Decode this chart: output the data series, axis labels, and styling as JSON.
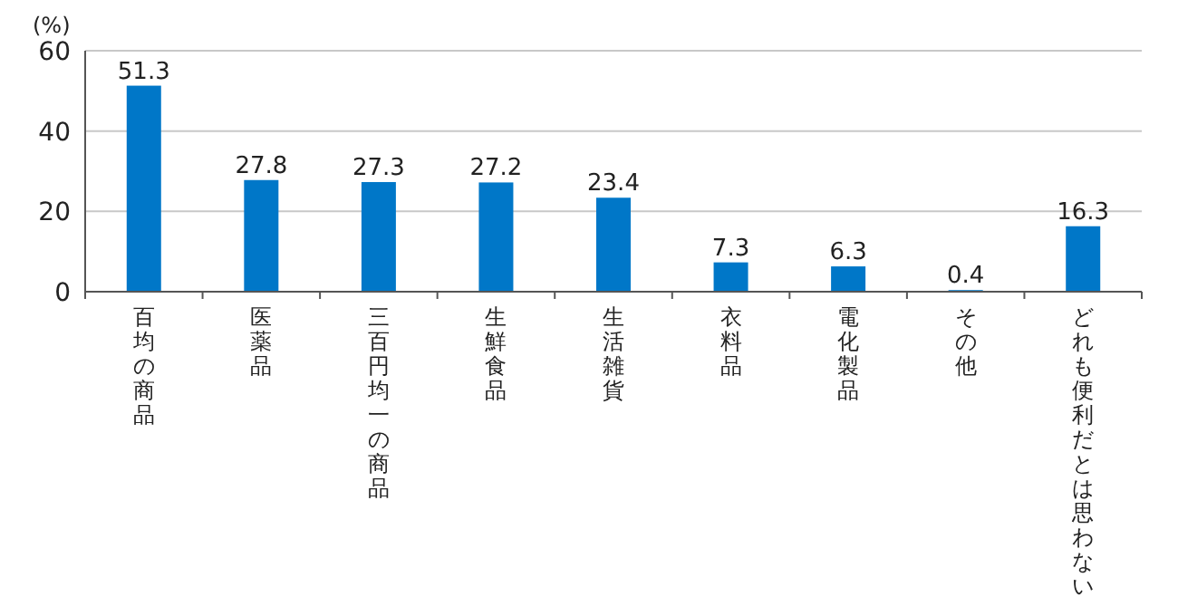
{
  "chart_data": {
    "type": "bar",
    "ylabel": "(%)",
    "categories": [
      "百均の商品",
      "医薬品",
      "三百円均一の商品",
      "生鮮食品",
      "生活雑貨",
      "衣料品",
      "電化製品",
      "その他",
      "どれも便利だとは思わない"
    ],
    "values": [
      51.3,
      27.8,
      27.3,
      27.2,
      23.4,
      7.3,
      6.3,
      0.4,
      16.3
    ],
    "color": "#0077c8",
    "ylim": [
      0,
      60
    ],
    "yticks": [
      0,
      20,
      40,
      60
    ],
    "grid": "y",
    "data_labels": true
  }
}
